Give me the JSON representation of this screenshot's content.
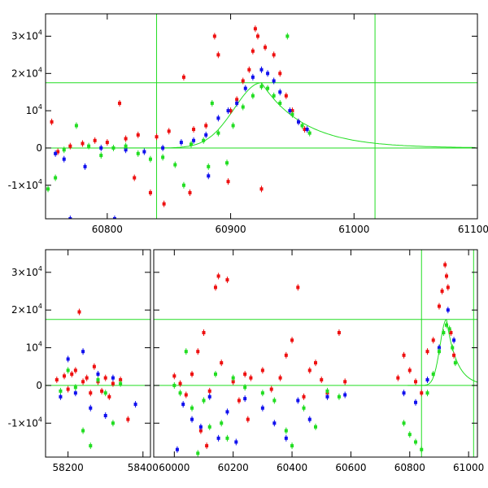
{
  "chart_data": [
    {
      "type": "scatter",
      "panel": "top",
      "title": "",
      "xlabel": "",
      "ylabel": "",
      "xlim": [
        60750,
        61100
      ],
      "ylim": [
        -19000,
        36000
      ],
      "xticks": [
        {
          "value": 60800,
          "label": "60800"
        },
        {
          "value": 60900,
          "label": "60900"
        },
        {
          "value": 61000,
          "label": "61000"
        },
        {
          "value": 61100,
          "label": "61100"
        }
      ],
      "yticks": [
        {
          "value": -10000,
          "mant": "-1×10",
          "exp": "4"
        },
        {
          "value": 0,
          "mant": "0",
          "exp": ""
        },
        {
          "value": 10000,
          "mant": "10",
          "exp": "4"
        },
        {
          "value": 20000,
          "mant": "2×10",
          "exp": "4"
        },
        {
          "value": 30000,
          "mant": "3×10",
          "exp": "4"
        }
      ],
      "reference_lines": {
        "vertical": [
          60840,
          61017
        ],
        "horizontal": [
          17500,
          0
        ]
      },
      "model_curve": {
        "peak_x": 60925,
        "peak_y": 17500,
        "rise_scale": 22,
        "decay_scale": 35
      },
      "series": [
        {
          "name": "red",
          "color": "#ee1111",
          "points": [
            [
              60755,
              7000
            ],
            [
              60760,
              -1000
            ],
            [
              60770,
              500
            ],
            [
              60780,
              1200
            ],
            [
              60790,
              2000
            ],
            [
              60800,
              1500
            ],
            [
              60810,
              12000
            ],
            [
              60815,
              2500
            ],
            [
              60825,
              3500
            ],
            [
              60835,
              -12000
            ],
            [
              60840,
              3000
            ],
            [
              60850,
              4500
            ],
            [
              60862,
              19000
            ],
            [
              60870,
              5000
            ],
            [
              60880,
              6000
            ],
            [
              60887,
              30000
            ],
            [
              60890,
              25000
            ],
            [
              60898,
              -9000
            ],
            [
              60900,
              10000
            ],
            [
              60905,
              13000
            ],
            [
              60910,
              18000
            ],
            [
              60915,
              21000
            ],
            [
              60918,
              26000
            ],
            [
              60920,
              32000
            ],
            [
              60922,
              30000
            ],
            [
              60925,
              -11000
            ],
            [
              60928,
              27000
            ],
            [
              60935,
              25000
            ],
            [
              60940,
              20000
            ],
            [
              60945,
              14000
            ],
            [
              60950,
              10000
            ],
            [
              60955,
              7000
            ],
            [
              60960,
              5000
            ],
            [
              60822,
              -8000
            ],
            [
              60846,
              -15000
            ],
            [
              60867,
              -12000
            ]
          ]
        },
        {
          "name": "blue",
          "color": "#1111ee",
          "points": [
            [
              60758,
              -1500
            ],
            [
              60765,
              -3000
            ],
            [
              60770,
              -19000
            ],
            [
              60782,
              -5000
            ],
            [
              60795,
              0
            ],
            [
              60806,
              -19000
            ],
            [
              60815,
              -500
            ],
            [
              60830,
              -1000
            ],
            [
              60845,
              0
            ],
            [
              60860,
              1500
            ],
            [
              60870,
              2000
            ],
            [
              60880,
              3500
            ],
            [
              60890,
              8000
            ],
            [
              60898,
              10000
            ],
            [
              60905,
              12000
            ],
            [
              60912,
              16000
            ],
            [
              60918,
              19000
            ],
            [
              60925,
              21000
            ],
            [
              60930,
              20000
            ],
            [
              60935,
              18000
            ],
            [
              60940,
              15000
            ],
            [
              60948,
              10000
            ],
            [
              60955,
              7000
            ],
            [
              60962,
              5000
            ],
            [
              60882,
              -7500
            ]
          ]
        },
        {
          "name": "green",
          "color": "#22dd22",
          "points": [
            [
              60752,
              -11000
            ],
            [
              60758,
              -8000
            ],
            [
              60765,
              -500
            ],
            [
              60775,
              6000
            ],
            [
              60785,
              500
            ],
            [
              60795,
              -2000
            ],
            [
              60805,
              0
            ],
            [
              60815,
              500
            ],
            [
              60825,
              -1500
            ],
            [
              60835,
              -3000
            ],
            [
              60845,
              -2500
            ],
            [
              60855,
              -4500
            ],
            [
              60862,
              -10000
            ],
            [
              60868,
              1000
            ],
            [
              60878,
              2000
            ],
            [
              60885,
              12000
            ],
            [
              60890,
              4000
            ],
            [
              60897,
              -4000
            ],
            [
              60902,
              6000
            ],
            [
              60910,
              11000
            ],
            [
              60918,
              14000
            ],
            [
              60925,
              16500
            ],
            [
              60930,
              16000
            ],
            [
              60935,
              14000
            ],
            [
              60940,
              12000
            ],
            [
              60946,
              30000
            ],
            [
              60950,
              9000
            ],
            [
              60958,
              6000
            ],
            [
              60964,
              4000
            ],
            [
              60882,
              -5000
            ]
          ]
        }
      ]
    },
    {
      "type": "scatter",
      "panel": "bottom",
      "title": "",
      "xlabel": "",
      "ylabel": "",
      "segments": [
        {
          "xlim": [
            58140,
            58420
          ],
          "xticks": [
            {
              "value": 58200,
              "label": "58200"
            },
            {
              "value": 58400,
              "label": "58400"
            }
          ]
        },
        {
          "xlim": [
            59930,
            61030
          ],
          "xticks": [
            {
              "value": 60000,
              "label": "60000"
            },
            {
              "value": 60200,
              "label": "60200"
            },
            {
              "value": 60400,
              "label": "60400"
            },
            {
              "value": 60600,
              "label": "60600"
            },
            {
              "value": 60800,
              "label": "60800"
            },
            {
              "value": 61000,
              "label": "61000"
            }
          ]
        }
      ],
      "ylim": [
        -19000,
        36000
      ],
      "yticks": [
        {
          "value": -10000,
          "mant": "-1×10",
          "exp": "4"
        },
        {
          "value": 0,
          "mant": "0",
          "exp": ""
        },
        {
          "value": 10000,
          "mant": "10",
          "exp": "4"
        },
        {
          "value": 20000,
          "mant": "2×10",
          "exp": "4"
        },
        {
          "value": 30000,
          "mant": "3×10",
          "exp": "4"
        }
      ],
      "reference_lines": {
        "vertical": [
          60840,
          61017
        ],
        "horizontal": [
          17500,
          0
        ]
      },
      "model_curve": {
        "peak_x": 60925,
        "peak_y": 17500,
        "rise_scale": 22,
        "decay_scale": 35
      },
      "series": [
        {
          "name": "red",
          "color": "#ee1111",
          "points": [
            [
              58170,
              1500
            ],
            [
              58190,
              2500
            ],
            [
              58200,
              -1000
            ],
            [
              58210,
              3000
            ],
            [
              58220,
              4000
            ],
            [
              58230,
              19500
            ],
            [
              58240,
              1000
            ],
            [
              58250,
              2000
            ],
            [
              58260,
              -2000
            ],
            [
              58270,
              5000
            ],
            [
              58280,
              1000
            ],
            [
              58290,
              -1500
            ],
            [
              58300,
              2000
            ],
            [
              58310,
              -3000
            ],
            [
              58320,
              500
            ],
            [
              58340,
              1500
            ],
            [
              58360,
              -9000
            ],
            [
              60000,
              2500
            ],
            [
              60020,
              500
            ],
            [
              60040,
              -2500
            ],
            [
              60060,
              3000
            ],
            [
              60080,
              9000
            ],
            [
              60100,
              14000
            ],
            [
              60120,
              -1500
            ],
            [
              60140,
              26000
            ],
            [
              60150,
              29000
            ],
            [
              60160,
              6000
            ],
            [
              60180,
              28000
            ],
            [
              60200,
              1000
            ],
            [
              60220,
              -4000
            ],
            [
              60240,
              3000
            ],
            [
              60260,
              2000
            ],
            [
              60300,
              4000
            ],
            [
              60330,
              -1000
            ],
            [
              60360,
              2000
            ],
            [
              60380,
              8000
            ],
            [
              60400,
              12000
            ],
            [
              60420,
              26000
            ],
            [
              60440,
              -3000
            ],
            [
              60460,
              4000
            ],
            [
              60480,
              6000
            ],
            [
              60500,
              1500
            ],
            [
              60520,
              -2000
            ],
            [
              60560,
              14000
            ],
            [
              60580,
              1000
            ],
            [
              60760,
              2000
            ],
            [
              60780,
              8000
            ],
            [
              60800,
              4000
            ],
            [
              60820,
              1000
            ],
            [
              60840,
              -2000
            ],
            [
              60860,
              9000
            ],
            [
              60880,
              12000
            ],
            [
              60900,
              21000
            ],
            [
              60910,
              25000
            ],
            [
              60920,
              32000
            ],
            [
              60925,
              29000
            ],
            [
              60930,
              26000
            ],
            [
              60940,
              14000
            ],
            [
              60950,
              8000
            ],
            [
              60090,
              -12000
            ],
            [
              60110,
              -16000
            ],
            [
              60250,
              -9000
            ]
          ]
        },
        {
          "name": "blue",
          "color": "#1111ee",
          "points": [
            [
              58180,
              -3000
            ],
            [
              58200,
              7000
            ],
            [
              58220,
              -2000
            ],
            [
              58240,
              9000
            ],
            [
              58260,
              -6000
            ],
            [
              58280,
              3000
            ],
            [
              58300,
              -8000
            ],
            [
              58320,
              2000
            ],
            [
              58380,
              -5000
            ],
            [
              60010,
              -17000
            ],
            [
              60030,
              -5000
            ],
            [
              60060,
              -9000
            ],
            [
              60090,
              -11000
            ],
            [
              60120,
              -3000
            ],
            [
              60150,
              -14000
            ],
            [
              60180,
              -7000
            ],
            [
              60210,
              -15000
            ],
            [
              60240,
              -3500
            ],
            [
              60300,
              -6000
            ],
            [
              60340,
              -10000
            ],
            [
              60380,
              -14000
            ],
            [
              60420,
              -4000
            ],
            [
              60460,
              -9000
            ],
            [
              60520,
              -3000
            ],
            [
              60580,
              -2500
            ],
            [
              60780,
              -2000
            ],
            [
              60820,
              -4500
            ],
            [
              60860,
              1500
            ],
            [
              60900,
              10000
            ],
            [
              60930,
              20000
            ],
            [
              60950,
              12000
            ]
          ]
        },
        {
          "name": "green",
          "color": "#22dd22",
          "points": [
            [
              58180,
              -1500
            ],
            [
              58200,
              4000
            ],
            [
              58220,
              -500
            ],
            [
              58240,
              -12000
            ],
            [
              58260,
              -16000
            ],
            [
              58280,
              1500
            ],
            [
              58300,
              -2000
            ],
            [
              58320,
              -10000
            ],
            [
              58340,
              500
            ],
            [
              60000,
              0
            ],
            [
              60020,
              -2000
            ],
            [
              60040,
              9000
            ],
            [
              60060,
              -6000
            ],
            [
              60080,
              -18000
            ],
            [
              60100,
              -4000
            ],
            [
              60120,
              -11000
            ],
            [
              60140,
              3000
            ],
            [
              60160,
              -10000
            ],
            [
              60180,
              -14000
            ],
            [
              60200,
              2000
            ],
            [
              60240,
              -500
            ],
            [
              60300,
              -2000
            ],
            [
              60340,
              -4000
            ],
            [
              60380,
              -12000
            ],
            [
              60400,
              -16000
            ],
            [
              60440,
              -6000
            ],
            [
              60480,
              -11000
            ],
            [
              60520,
              -1500
            ],
            [
              60560,
              -3000
            ],
            [
              60780,
              -10000
            ],
            [
              60800,
              -13000
            ],
            [
              60820,
              -15000
            ],
            [
              60840,
              -17000
            ],
            [
              60860,
              -2000
            ],
            [
              60880,
              3000
            ],
            [
              60900,
              9000
            ],
            [
              60915,
              14000
            ],
            [
              60925,
              16000
            ],
            [
              60935,
              15000
            ],
            [
              60945,
              10000
            ],
            [
              60955,
              6000
            ]
          ]
        }
      ]
    }
  ]
}
